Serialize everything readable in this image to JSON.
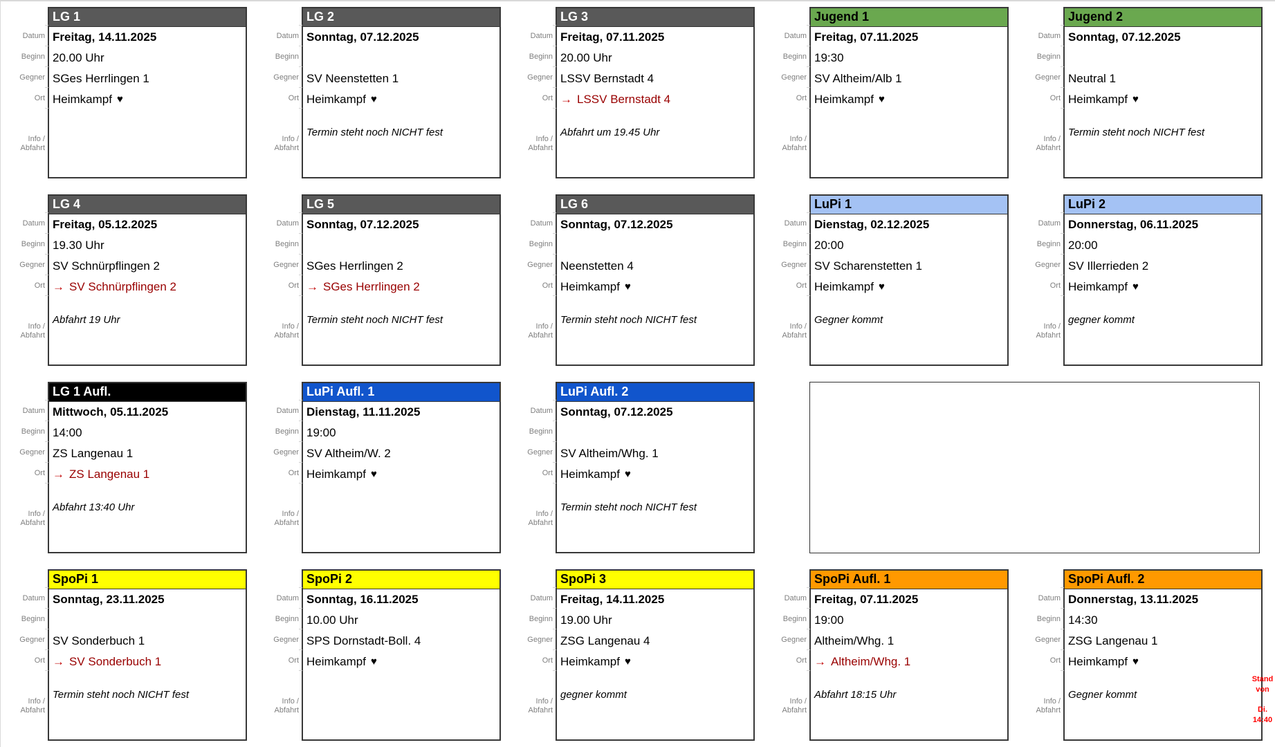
{
  "page": {
    "labels": {
      "datum": "Datum",
      "beginn": "Beginn",
      "gegner": "Gegner",
      "ort": "Ort",
      "info_line1": "Info /",
      "info_line2": "Abfahrt"
    },
    "icons": {
      "away_arrow": "→",
      "home_heart": "♥"
    },
    "colors": {
      "lg_header": "#595959",
      "jugend_header": "#6aa84f",
      "lupi_header": "#a4c2f4",
      "lg_aufl_header": "#000000",
      "lupi_aufl_header": "#1155cc",
      "spopi_header": "#ffff00",
      "spopi_aufl_header": "#ff9900",
      "away_text": "#990000",
      "away_arrow": "#c00000",
      "stand_note": "#ff0000"
    },
    "stand_note": {
      "line1": "Stand",
      "line2": "von",
      "line3": "Di.",
      "line4": "14:40"
    },
    "rows": [
      [
        {
          "type": "card",
          "title": "LG 1",
          "header_bg": "#595959",
          "header_text": "#ffffff",
          "datum": "Freitag, 14.11.2025",
          "beginn": "20.00 Uhr",
          "gegner": "SGes Herrlingen 1",
          "ort": "Heimkampf",
          "ort_heart": true,
          "ort_away": false,
          "info": ""
        },
        {
          "type": "card",
          "title": "LG 2",
          "header_bg": "#595959",
          "header_text": "#ffffff",
          "datum": "Sonntag, 07.12.2025",
          "beginn": "",
          "gegner": "SV Neenstetten 1",
          "ort": "Heimkampf",
          "ort_heart": true,
          "ort_away": false,
          "info": "Termin steht noch NICHT fest"
        },
        {
          "type": "card",
          "title": "LG 3",
          "header_bg": "#595959",
          "header_text": "#ffffff",
          "datum": "Freitag, 07.11.2025",
          "beginn": "20.00 Uhr",
          "gegner": "LSSV Bernstadt 4",
          "ort": "LSSV Bernstadt 4",
          "ort_heart": false,
          "ort_away": true,
          "info": "Abfahrt um 19.45 Uhr"
        },
        {
          "type": "card",
          "title": "Jugend 1",
          "header_bg": "#6aa84f",
          "header_text": "#000000",
          "datum": "Freitag, 07.11.2025",
          "beginn": "19:30",
          "gegner": "SV Altheim/Alb 1",
          "ort": "Heimkampf",
          "ort_heart": true,
          "ort_away": false,
          "info": ""
        },
        {
          "type": "card",
          "title": "Jugend 2",
          "header_bg": "#6aa84f",
          "header_text": "#000000",
          "datum": "Sonntag, 07.12.2025",
          "beginn": "",
          "gegner": "Neutral 1",
          "ort": "Heimkampf",
          "ort_heart": true,
          "ort_away": false,
          "info": "Termin steht noch NICHT fest"
        }
      ],
      [
        {
          "type": "card",
          "title": "LG 4",
          "header_bg": "#595959",
          "header_text": "#ffffff",
          "datum": "Freitag, 05.12.2025",
          "beginn": "19.30 Uhr",
          "gegner": "SV Schnürpflingen 2",
          "ort": "SV Schnürpflingen 2",
          "ort_heart": false,
          "ort_away": true,
          "info": "Abfahrt 19 Uhr"
        },
        {
          "type": "card",
          "title": "LG 5",
          "header_bg": "#595959",
          "header_text": "#ffffff",
          "datum": "Sonntag, 07.12.2025",
          "beginn": "",
          "gegner": "SGes Herrlingen 2",
          "ort": "SGes Herrlingen 2",
          "ort_heart": false,
          "ort_away": true,
          "info": "Termin steht noch NICHT fest"
        },
        {
          "type": "card",
          "title": "LG 6",
          "header_bg": "#595959",
          "header_text": "#ffffff",
          "datum": "Sonntag, 07.12.2025",
          "beginn": "",
          "gegner": "Neenstetten 4",
          "ort": "Heimkampf",
          "ort_heart": true,
          "ort_away": false,
          "info": "Termin steht noch NICHT fest"
        },
        {
          "type": "card",
          "title": "LuPi 1",
          "header_bg": "#a4c2f4",
          "header_text": "#000000",
          "datum": "Dienstag, 02.12.2025",
          "beginn": "20:00",
          "gegner": "SV Scharenstetten 1",
          "ort": "Heimkampf",
          "ort_heart": true,
          "ort_away": false,
          "info": "Gegner kommt"
        },
        {
          "type": "card",
          "title": "LuPi 2",
          "header_bg": "#a4c2f4",
          "header_text": "#000000",
          "datum": "Donnerstag, 06.11.2025",
          "beginn": "20:00",
          "gegner": "SV Illerrieden 2",
          "ort": "Heimkampf",
          "ort_heart": true,
          "ort_away": false,
          "info": "gegner kommt"
        }
      ],
      [
        {
          "type": "card",
          "title": "LG 1 Aufl.",
          "header_bg": "#000000",
          "header_text": "#ffffff",
          "datum": "Mittwoch, 05.11.2025",
          "beginn": "14:00",
          "gegner": "ZS Langenau 1",
          "ort": "ZS Langenau 1",
          "ort_heart": false,
          "ort_away": true,
          "info": "Abfahrt 13:40 Uhr"
        },
        {
          "type": "card",
          "title": "LuPi Aufl. 1",
          "header_bg": "#1155cc",
          "header_text": "#ffffff",
          "datum": "Dienstag, 11.11.2025",
          "beginn": "19:00",
          "gegner": "SV Altheim/W. 2",
          "ort": "Heimkampf",
          "ort_heart": true,
          "ort_away": false,
          "info": ""
        },
        {
          "type": "card",
          "title": "LuPi Aufl. 2",
          "header_bg": "#1155cc",
          "header_text": "#ffffff",
          "datum": "Sonntag, 07.12.2025",
          "beginn": "",
          "gegner": "SV Altheim/Whg. 1",
          "ort": "Heimkampf",
          "ort_heart": true,
          "ort_away": false,
          "info": "Termin steht noch NICHT fest"
        },
        {
          "type": "empty-box",
          "span": 2
        }
      ],
      [
        {
          "type": "card",
          "title": "SpoPi 1",
          "header_bg": "#ffff00",
          "header_text": "#000000",
          "datum": "Sonntag, 23.11.2025",
          "beginn": "",
          "gegner": "SV Sonderbuch 1",
          "ort": "SV Sonderbuch 1",
          "ort_heart": false,
          "ort_away": true,
          "info": "Termin steht noch NICHT fest"
        },
        {
          "type": "card",
          "title": "SpoPi 2",
          "header_bg": "#ffff00",
          "header_text": "#000000",
          "datum": "Sonntag, 16.11.2025",
          "beginn": "10.00 Uhr",
          "gegner": "SPS Dornstadt-Boll. 4",
          "ort": "Heimkampf",
          "ort_heart": true,
          "ort_away": false,
          "info": ""
        },
        {
          "type": "card",
          "title": "SpoPi 3",
          "header_bg": "#ffff00",
          "header_text": "#000000",
          "datum": "Freitag, 14.11.2025",
          "beginn": "19.00 Uhr",
          "gegner": "ZSG Langenau 4",
          "ort": "Heimkampf",
          "ort_heart": true,
          "ort_away": false,
          "info": "gegner kommt"
        },
        {
          "type": "card",
          "title": "SpoPi Aufl. 1",
          "header_bg": "#ff9900",
          "header_text": "#000000",
          "datum": "Freitag, 07.11.2025",
          "beginn": "19:00",
          "gegner": "Altheim/Whg. 1",
          "ort": "Altheim/Whg. 1",
          "ort_heart": false,
          "ort_away": true,
          "info": "Abfahrt 18:15 Uhr"
        },
        {
          "type": "card",
          "title": "SpoPi Aufl. 2",
          "header_bg": "#ff9900",
          "header_text": "#000000",
          "datum": "Donnerstag, 13.11.2025",
          "beginn": "14:30",
          "gegner": "ZSG Langenau 1",
          "ort": "Heimkampf",
          "ort_heart": true,
          "ort_away": false,
          "info": "Gegner kommt"
        }
      ]
    ]
  }
}
